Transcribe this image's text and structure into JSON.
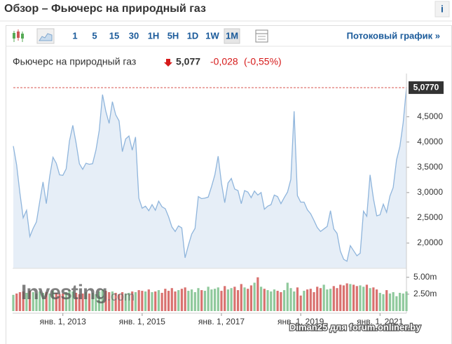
{
  "header": {
    "title": "Обзор – Фьючерс на природный газ",
    "info": "i"
  },
  "toolbar": {
    "intervals": [
      "1",
      "5",
      "15",
      "30",
      "1H",
      "5H",
      "1D",
      "1W",
      "1M"
    ],
    "selected": 8,
    "streaming_link": "Потоковый график »"
  },
  "quote": {
    "name": "Фьючерс на природный газ",
    "last": "5,077",
    "change": "-0,028",
    "change_percent": "(-0,55%)"
  },
  "watermarks": {
    "logo_main": "Investing",
    "logo_suffix": ".com",
    "credit": "Diman25 для forum.onliner.by"
  },
  "chart_data": {
    "type": "area",
    "color": "#8fb5dc",
    "fill": "#e6eef7",
    "x": [
      "2011-10-01",
      "2011-11-01",
      "2011-12-01",
      "2012-01-01",
      "2012-02-01",
      "2012-03-01",
      "2012-04-01",
      "2012-05-01",
      "2012-06-01",
      "2012-07-01",
      "2012-08-01",
      "2012-09-01",
      "2012-10-01",
      "2012-11-01",
      "2012-12-01",
      "2013-01-01",
      "2013-02-01",
      "2013-03-01",
      "2013-04-01",
      "2013-05-01",
      "2013-06-01",
      "2013-07-01",
      "2013-08-01",
      "2013-09-01",
      "2013-10-01",
      "2013-11-01",
      "2013-12-01",
      "2014-01-01",
      "2014-02-01",
      "2014-03-01",
      "2014-04-01",
      "2014-05-01",
      "2014-06-01",
      "2014-07-01",
      "2014-08-01",
      "2014-09-01",
      "2014-10-01",
      "2014-11-01",
      "2014-12-01",
      "2015-01-01",
      "2015-02-01",
      "2015-03-01",
      "2015-04-01",
      "2015-05-01",
      "2015-06-01",
      "2015-07-01",
      "2015-08-01",
      "2015-09-01",
      "2015-10-01",
      "2015-11-01",
      "2015-12-01",
      "2016-01-01",
      "2016-02-01",
      "2016-03-01",
      "2016-04-01",
      "2016-05-01",
      "2016-06-01",
      "2016-07-01",
      "2016-08-01",
      "2016-09-01",
      "2016-10-01",
      "2016-11-01",
      "2016-12-01",
      "2017-01-01",
      "2017-02-01",
      "2017-03-01",
      "2017-04-01",
      "2017-05-01",
      "2017-06-01",
      "2017-07-01",
      "2017-08-01",
      "2017-09-01",
      "2017-10-01",
      "2017-11-01",
      "2017-12-01",
      "2018-01-01",
      "2018-02-01",
      "2018-03-01",
      "2018-04-01",
      "2018-05-01",
      "2018-06-01",
      "2018-07-01",
      "2018-08-01",
      "2018-09-01",
      "2018-10-01",
      "2018-11-01",
      "2018-12-01",
      "2019-01-01",
      "2019-02-01",
      "2019-03-01",
      "2019-04-01",
      "2019-05-01",
      "2019-06-01",
      "2019-07-01",
      "2019-08-01",
      "2019-09-01",
      "2019-10-01",
      "2019-11-01",
      "2019-12-01",
      "2020-01-01",
      "2020-02-01",
      "2020-03-01",
      "2020-04-01",
      "2020-05-01",
      "2020-06-01",
      "2020-07-01",
      "2020-08-01",
      "2020-09-01",
      "2020-10-01",
      "2020-11-01",
      "2020-12-01",
      "2021-01-01",
      "2021-02-01",
      "2021-03-01",
      "2021-04-01",
      "2021-05-01",
      "2021-06-01",
      "2021-07-01",
      "2021-08-01",
      "2021-09-01"
    ],
    "values": [
      3.92,
      3.55,
      2.99,
      2.5,
      2.65,
      2.13,
      2.29,
      2.42,
      2.82,
      3.21,
      2.78,
      3.32,
      3.7,
      3.58,
      3.35,
      3.34,
      3.47,
      4.02,
      4.33,
      3.98,
      3.57,
      3.46,
      3.58,
      3.56,
      3.57,
      3.84,
      4.23,
      4.94,
      4.61,
      4.37,
      4.8,
      4.54,
      4.42,
      3.81,
      4.06,
      4.12,
      3.84,
      4.1,
      2.89,
      2.69,
      2.73,
      2.64,
      2.76,
      2.65,
      2.83,
      2.72,
      2.68,
      2.52,
      2.32,
      2.23,
      2.34,
      2.3,
      1.71,
      1.96,
      2.18,
      2.29,
      2.92,
      2.88,
      2.89,
      2.91,
      3.12,
      3.35,
      3.72,
      3.19,
      2.8,
      3.19,
      3.28,
      3.07,
      3.04,
      2.78,
      3.04,
      3.01,
      2.9,
      3.03,
      2.95,
      3.0,
      2.67,
      2.73,
      2.76,
      2.95,
      2.92,
      2.78,
      2.9,
      3.01,
      3.26,
      4.61,
      2.94,
      2.81,
      2.81,
      2.66,
      2.58,
      2.45,
      2.31,
      2.23,
      2.28,
      2.33,
      2.64,
      2.28,
      2.19,
      1.84,
      1.68,
      1.64,
      1.95,
      1.85,
      1.75,
      1.8,
      2.63,
      2.53,
      3.35,
      2.88,
      2.54,
      2.56,
      2.77,
      2.61,
      2.93,
      3.1,
      3.65,
      3.91,
      4.38,
      5.077
    ],
    "xlim": [
      "2011-10-01",
      "2021-09-01"
    ],
    "xticks": [
      {
        "value": "2013-01-01",
        "label": "янв. 1, 2013"
      },
      {
        "value": "2015-01-01",
        "label": "янв. 1, 2015"
      },
      {
        "value": "2017-01-01",
        "label": "янв. 1, 2017"
      },
      {
        "value": "2019-01-01",
        "label": "янв. 1, 2019"
      },
      {
        "value": "2021-01-01",
        "label": "янв. 1, 2021"
      }
    ],
    "ylim": [
      1.5,
      5.3
    ],
    "yticks": [
      {
        "value": 2,
        "label": "2,0000"
      },
      {
        "value": 2.5,
        "label": "2,5000"
      },
      {
        "value": 3,
        "label": "3,0000"
      },
      {
        "value": 3.5,
        "label": "3,5000"
      },
      {
        "value": 4,
        "label": "4,0000"
      },
      {
        "value": 4.5,
        "label": "4,5000"
      }
    ],
    "last": {
      "value": 5.077,
      "label": "5,0770"
    },
    "grid": false,
    "volume": {
      "up_color": "#8fc99c",
      "down_color": "#d9716f",
      "ylim": [
        0,
        5.6
      ],
      "yticks": [
        {
          "value": 2.5,
          "label": "2.50m"
        },
        {
          "value": 5,
          "label": "5.00m"
        }
      ],
      "values": [
        2.4,
        2.6,
        2.8,
        2.9,
        2.7,
        3.0,
        2.8,
        2.6,
        2.9,
        2.7,
        2.8,
        2.6,
        3.0,
        2.7,
        2.5,
        2.6,
        2.8,
        3.1,
        2.9,
        2.7,
        2.5,
        2.6,
        2.8,
        2.6,
        2.7,
        2.5,
        2.9,
        3.2,
        3.0,
        2.8,
        2.9,
        2.7,
        2.5,
        2.8,
        2.6,
        2.7,
        2.9,
        2.8,
        3.1,
        3.0,
        2.9,
        3.2,
        2.8,
        2.9,
        3.1,
        2.7,
        3.3,
        3.0,
        3.4,
        2.9,
        3.1,
        3.3,
        3.5,
        3.0,
        3.2,
        2.8,
        3.4,
        3.1,
        3.0,
        3.6,
        3.2,
        3.3,
        3.5,
        3.0,
        3.7,
        3.2,
        3.4,
        3.6,
        3.1,
        4.0,
        3.5,
        3.3,
        3.8,
        4.2,
        5.0,
        3.6,
        3.3,
        3.1,
        2.9,
        3.2,
        3.0,
        2.8,
        3.1,
        4.2,
        3.4,
        2.9,
        3.5,
        2.3,
        3.0,
        3.2,
        3.3,
        2.8,
        3.6,
        3.4,
        3.9,
        3.2,
        3.3,
        3.7,
        3.4,
        3.9,
        3.8,
        4.1,
        4.0,
        3.9,
        3.7,
        3.8,
        3.6,
        3.9,
        3.4,
        3.5,
        3.2,
        2.7,
        2.5,
        3.1,
        2.6,
        2.8,
        2.2,
        2.7,
        2.6,
        2.9
      ]
    }
  }
}
